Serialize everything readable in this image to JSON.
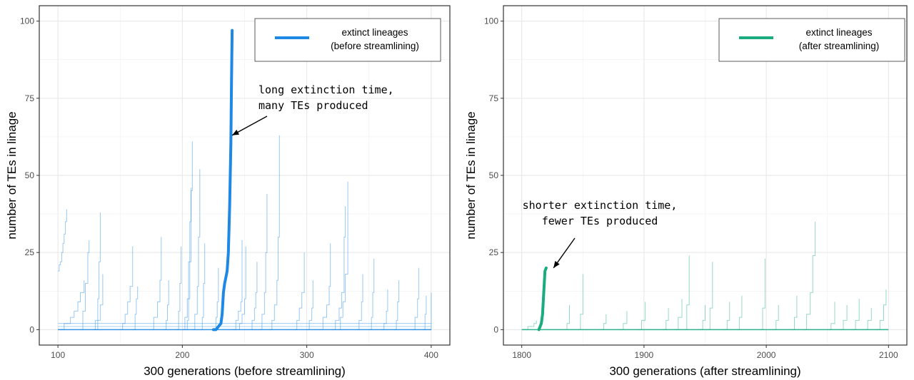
{
  "chart_data": [
    {
      "type": "line",
      "xlabel": "300 generations (before streamlining)",
      "ylabel": "number of TEs in linage",
      "xlim": [
        85,
        415
      ],
      "ylim": [
        -5,
        105
      ],
      "x_ticks": [
        100,
        200,
        300,
        400
      ],
      "y_ticks": [
        0,
        25,
        50,
        75,
        100
      ],
      "grid": true,
      "legend_position": "top-right",
      "legend": {
        "line1": "extinct lineages",
        "line2": "(before streamlining)"
      },
      "color": "#1e88e5",
      "annotation": {
        "line1": "long extinction time,",
        "line2": "many TEs produced",
        "arrow_to": [
          240,
          63
        ]
      },
      "highlight_series": {
        "x": [
          225,
          227,
          229,
          231,
          232,
          233,
          234,
          235,
          236,
          237,
          238,
          239,
          239.5,
          240
        ],
        "y": [
          0,
          0,
          1,
          2,
          5,
          12,
          15,
          17,
          19,
          25,
          40,
          60,
          80,
          97
        ]
      },
      "background_series": [
        {
          "x": [
            100,
            101,
            102,
            103,
            104,
            105,
            106,
            107
          ],
          "y": [
            19,
            21,
            22,
            25,
            28,
            31,
            35,
            39
          ]
        },
        {
          "x": [
            100,
            105,
            110,
            113,
            116,
            118,
            121
          ],
          "y": [
            0,
            2,
            4,
            6,
            9,
            12,
            16
          ]
        },
        {
          "x": [
            118,
            120,
            122,
            124,
            125
          ],
          "y": [
            0,
            6,
            15,
            25,
            29
          ]
        },
        {
          "x": [
            128,
            130,
            132,
            133,
            134
          ],
          "y": [
            0,
            3,
            10,
            22,
            38
          ]
        },
        {
          "x": [
            150,
            152,
            154,
            156,
            158,
            160
          ],
          "y": [
            0,
            2,
            5,
            9,
            14,
            27
          ]
        },
        {
          "x": [
            175,
            177,
            180,
            182,
            183
          ],
          "y": [
            0,
            4,
            9,
            16,
            30
          ]
        },
        {
          "x": [
            195,
            197,
            198,
            199
          ],
          "y": [
            0,
            6,
            15,
            27
          ]
        },
        {
          "x": [
            200,
            202,
            204,
            205,
            206,
            207
          ],
          "y": [
            0,
            4,
            10,
            22,
            35,
            46
          ]
        },
        {
          "x": [
            203,
            204,
            205,
            206,
            207,
            208
          ],
          "y": [
            0,
            3,
            10,
            22,
            45,
            61
          ]
        },
        {
          "x": [
            208,
            210,
            212,
            213,
            214
          ],
          "y": [
            0,
            5,
            14,
            30,
            52
          ]
        },
        {
          "x": [
            215,
            216,
            217,
            218
          ],
          "y": [
            0,
            4,
            15,
            28
          ]
        },
        {
          "x": [
            240,
            243,
            245,
            247,
            248
          ],
          "y": [
            0,
            3,
            6,
            9,
            29
          ]
        },
        {
          "x": [
            245,
            246,
            248,
            250,
            251
          ],
          "y": [
            0,
            2,
            5,
            10,
            27
          ]
        },
        {
          "x": [
            255,
            256,
            258,
            259,
            260
          ],
          "y": [
            0,
            3,
            7,
            12,
            22
          ]
        },
        {
          "x": [
            262,
            264,
            266,
            267,
            268
          ],
          "y": [
            0,
            5,
            12,
            25,
            44
          ]
        },
        {
          "x": [
            270,
            272,
            274,
            276,
            277,
            278
          ],
          "y": [
            0,
            3,
            8,
            16,
            30,
            63
          ]
        },
        {
          "x": [
            290,
            292,
            294,
            296,
            298
          ],
          "y": [
            0,
            3,
            7,
            12,
            25
          ]
        },
        {
          "x": [
            310,
            313,
            316,
            318,
            319
          ],
          "y": [
            0,
            4,
            8,
            14,
            28
          ]
        },
        {
          "x": [
            320,
            323,
            326,
            328,
            330,
            331
          ],
          "y": [
            0,
            3,
            7,
            12,
            30,
            40
          ]
        },
        {
          "x": [
            325,
            327,
            329,
            331,
            333
          ],
          "y": [
            0,
            4,
            9,
            18,
            48
          ]
        },
        {
          "x": [
            340,
            342,
            344,
            345
          ],
          "y": [
            0,
            3,
            9,
            18
          ]
        },
        {
          "x": [
            350,
            352,
            353,
            354
          ],
          "y": [
            0,
            4,
            12,
            23
          ]
        },
        {
          "x": [
            370,
            372,
            373,
            374
          ],
          "y": [
            0,
            3,
            9,
            16
          ]
        },
        {
          "x": [
            385,
            387,
            389,
            390
          ],
          "y": [
            0,
            4,
            10,
            20
          ]
        },
        {
          "x": [
            393,
            395,
            396
          ],
          "y": [
            0,
            5,
            11
          ]
        },
        {
          "x": [
            399,
            400
          ],
          "y": [
            0,
            12
          ]
        },
        {
          "x": [
            130,
            132,
            134,
            136
          ],
          "y": [
            0,
            3,
            8,
            18
          ]
        },
        {
          "x": [
            160,
            162,
            163,
            164
          ],
          "y": [
            0,
            5,
            10,
            14
          ]
        },
        {
          "x": [
            185,
            187,
            188,
            189
          ],
          "y": [
            0,
            3,
            8,
            16
          ]
        },
        {
          "x": [
            225,
            227,
            228,
            229
          ],
          "y": [
            0,
            4,
            9,
            20
          ]
        },
        {
          "x": [
            300,
            302,
            304,
            305
          ],
          "y": [
            0,
            3,
            7,
            16
          ]
        },
        {
          "x": [
            360,
            362,
            364,
            365
          ],
          "y": [
            0,
            2,
            6,
            13
          ]
        }
      ]
    },
    {
      "type": "line",
      "xlabel": "300 generations (after streamlining)",
      "ylabel": "number of TEs in linage",
      "xlim": [
        1785,
        2115
      ],
      "ylim": [
        -5,
        105
      ],
      "x_ticks": [
        1800,
        1900,
        2000,
        2100
      ],
      "y_ticks": [
        0,
        25,
        50,
        75,
        100
      ],
      "grid": true,
      "legend_position": "top-right",
      "legend": {
        "line1": "extinct lineages",
        "line2": "(after streamlining)"
      },
      "color": "#1aab7f",
      "annotation": {
        "line1": "shorter extinction time,",
        "line2": "fewer TEs produced",
        "arrow_to": [
          1826,
          20
        ]
      },
      "highlight_series": {
        "x": [
          1814,
          1815,
          1816,
          1817,
          1818,
          1819,
          1820
        ],
        "y": [
          0,
          1,
          2,
          5,
          12,
          19,
          20
        ]
      },
      "background_series": [
        {
          "x": [
            1800,
            1805,
            1810,
            1812
          ],
          "y": [
            0,
            1,
            2,
            3
          ]
        },
        {
          "x": [
            1835,
            1837,
            1839
          ],
          "y": [
            0,
            2,
            8
          ]
        },
        {
          "x": [
            1846,
            1848,
            1850
          ],
          "y": [
            0,
            5,
            18
          ]
        },
        {
          "x": [
            1865,
            1867,
            1869
          ],
          "y": [
            0,
            2,
            5
          ]
        },
        {
          "x": [
            1880,
            1883,
            1886
          ],
          "y": [
            0,
            2,
            6
          ]
        },
        {
          "x": [
            1895,
            1898,
            1901
          ],
          "y": [
            0,
            3,
            9
          ]
        },
        {
          "x": [
            1915,
            1918,
            1920
          ],
          "y": [
            0,
            3,
            7
          ]
        },
        {
          "x": [
            1925,
            1928,
            1931
          ],
          "y": [
            0,
            4,
            10
          ]
        },
        {
          "x": [
            1933,
            1935,
            1937
          ],
          "y": [
            0,
            8,
            24
          ]
        },
        {
          "x": [
            1945,
            1948,
            1950
          ],
          "y": [
            0,
            3,
            8
          ]
        },
        {
          "x": [
            1952,
            1954,
            1956
          ],
          "y": [
            0,
            7,
            22
          ]
        },
        {
          "x": [
            1965,
            1968,
            1970
          ],
          "y": [
            0,
            3,
            9
          ]
        },
        {
          "x": [
            1975,
            1978,
            1980
          ],
          "y": [
            0,
            4,
            11
          ]
        },
        {
          "x": [
            1995,
            1997,
            1999
          ],
          "y": [
            0,
            7,
            23
          ]
        },
        {
          "x": [
            2005,
            2008,
            2010
          ],
          "y": [
            0,
            3,
            8
          ]
        },
        {
          "x": [
            2020,
            2023,
            2025
          ],
          "y": [
            0,
            4,
            11
          ]
        },
        {
          "x": [
            2030,
            2033,
            2036,
            2038,
            2040
          ],
          "y": [
            0,
            5,
            12,
            24,
            35
          ]
        },
        {
          "x": [
            2050,
            2053,
            2056
          ],
          "y": [
            0,
            2,
            9
          ]
        },
        {
          "x": [
            2060,
            2063,
            2066
          ],
          "y": [
            0,
            3,
            8
          ]
        },
        {
          "x": [
            2070,
            2073,
            2076
          ],
          "y": [
            0,
            3,
            10
          ]
        },
        {
          "x": [
            2080,
            2083,
            2086
          ],
          "y": [
            0,
            3,
            7
          ]
        },
        {
          "x": [
            2090,
            2093,
            2096,
            2098
          ],
          "y": [
            0,
            3,
            8,
            13
          ]
        }
      ]
    }
  ]
}
